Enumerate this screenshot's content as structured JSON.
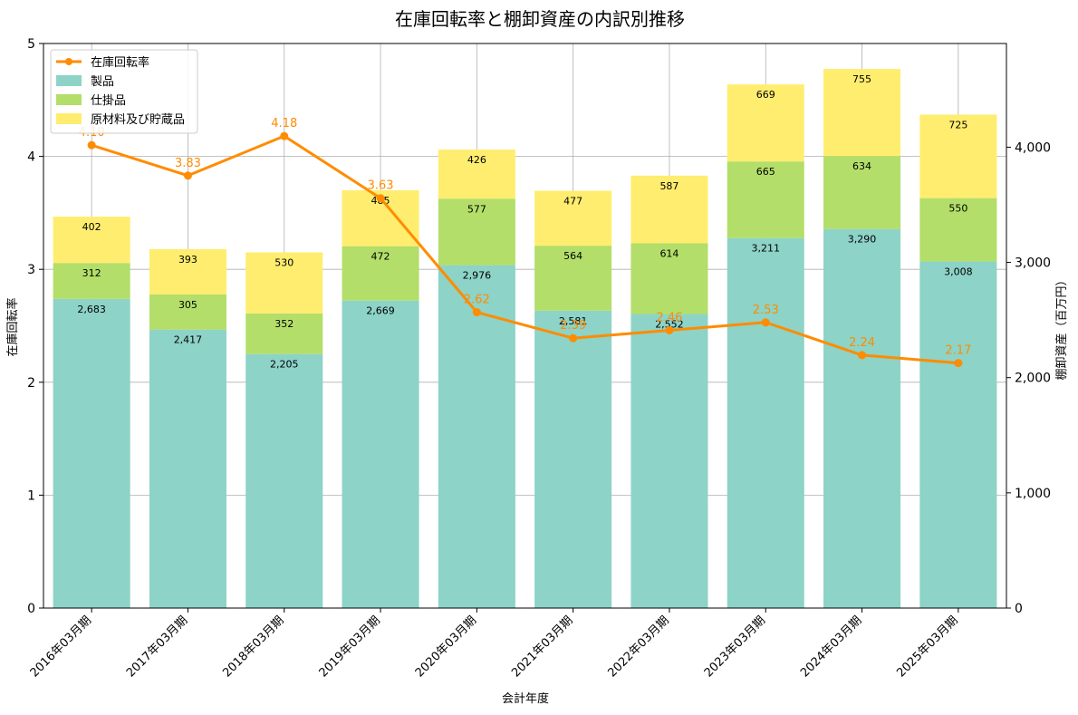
{
  "chart_data": {
    "type": "bar",
    "title": "在庫回転率と棚卸資産の内訳別推移",
    "xlabel": "会計年度",
    "ylabel_left": "在庫回転率",
    "ylabel_right": "棚卸資産（百万円）",
    "categories": [
      "2016年03月期",
      "2017年03月期",
      "2018年03月期",
      "2019年03月期",
      "2020年03月期",
      "2021年03月期",
      "2022年03月期",
      "2023年03月期",
      "2024年03月期",
      "2025年03月期"
    ],
    "series": [
      {
        "name": "製品",
        "type": "bar",
        "axis": "right",
        "color": "#8dd3c7",
        "values": [
          2683,
          2417,
          2205,
          2669,
          2976,
          2581,
          2552,
          3211,
          3290,
          3008
        ]
      },
      {
        "name": "仕掛品",
        "type": "bar",
        "axis": "right",
        "color": "#b3de69",
        "values": [
          312,
          305,
          352,
          472,
          577,
          564,
          614,
          665,
          634,
          550
        ]
      },
      {
        "name": "原材料及び貯蔵品",
        "type": "bar",
        "axis": "right",
        "color": "#ffed6f",
        "values": [
          402,
          393,
          530,
          485,
          426,
          477,
          587,
          669,
          755,
          725
        ]
      },
      {
        "name": "在庫回転率",
        "type": "line",
        "axis": "left",
        "color": "#ff8c00",
        "values": [
          4.1,
          3.83,
          4.18,
          3.63,
          2.62,
          2.39,
          2.46,
          2.53,
          2.24,
          2.17
        ]
      }
    ],
    "ylim_left": [
      0,
      5
    ],
    "yticks_left": [
      "0",
      "1",
      "2",
      "3",
      "4",
      "5"
    ],
    "ylim_right": [
      0,
      4900
    ],
    "yticks_right": [
      "0",
      "1,000",
      "2,000",
      "3,000",
      "4,000"
    ],
    "grid": true,
    "legend_position": "top-left",
    "legend_order": [
      "在庫回転率",
      "製品",
      "仕掛品",
      "原材料及び貯蔵品"
    ]
  }
}
